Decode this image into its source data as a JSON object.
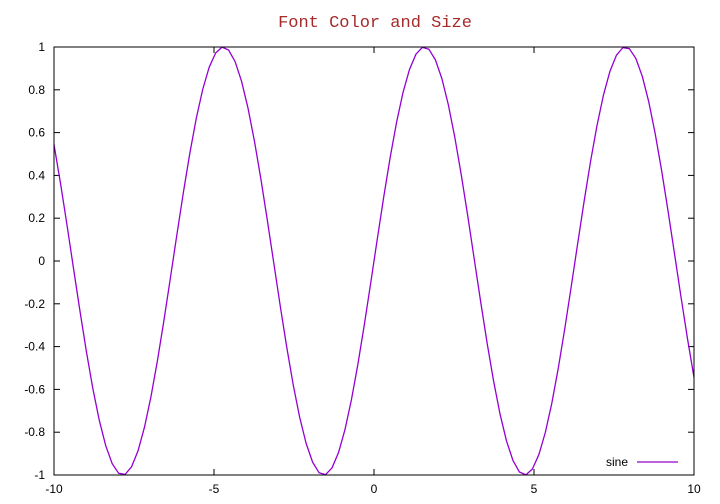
{
  "chart_data": {
    "type": "line",
    "title": "Font Color and Size",
    "title_color": "#a52a2a",
    "xlabel": "",
    "ylabel": "",
    "xlim": [
      -10,
      10
    ],
    "ylim": [
      -1,
      1
    ],
    "x_ticks": [
      -10,
      -5,
      0,
      5,
      10
    ],
    "x_tick_labels": [
      "-10",
      "-5",
      "0",
      "5",
      "10"
    ],
    "y_ticks": [
      -1,
      -0.8,
      -0.6,
      -0.4,
      -0.2,
      0,
      0.2,
      0.4,
      0.6,
      0.8,
      1
    ],
    "y_tick_labels": [
      "-1",
      "-0.8",
      "-0.6",
      "-0.4",
      "-0.2",
      "0",
      "0.2",
      "0.4",
      "0.6",
      "0.8",
      "1"
    ],
    "grid": false,
    "legend_position": "bottom-right",
    "series": [
      {
        "name": "sine",
        "color": "#9400d3",
        "function": "sin(x)",
        "samples": 100
      }
    ]
  }
}
